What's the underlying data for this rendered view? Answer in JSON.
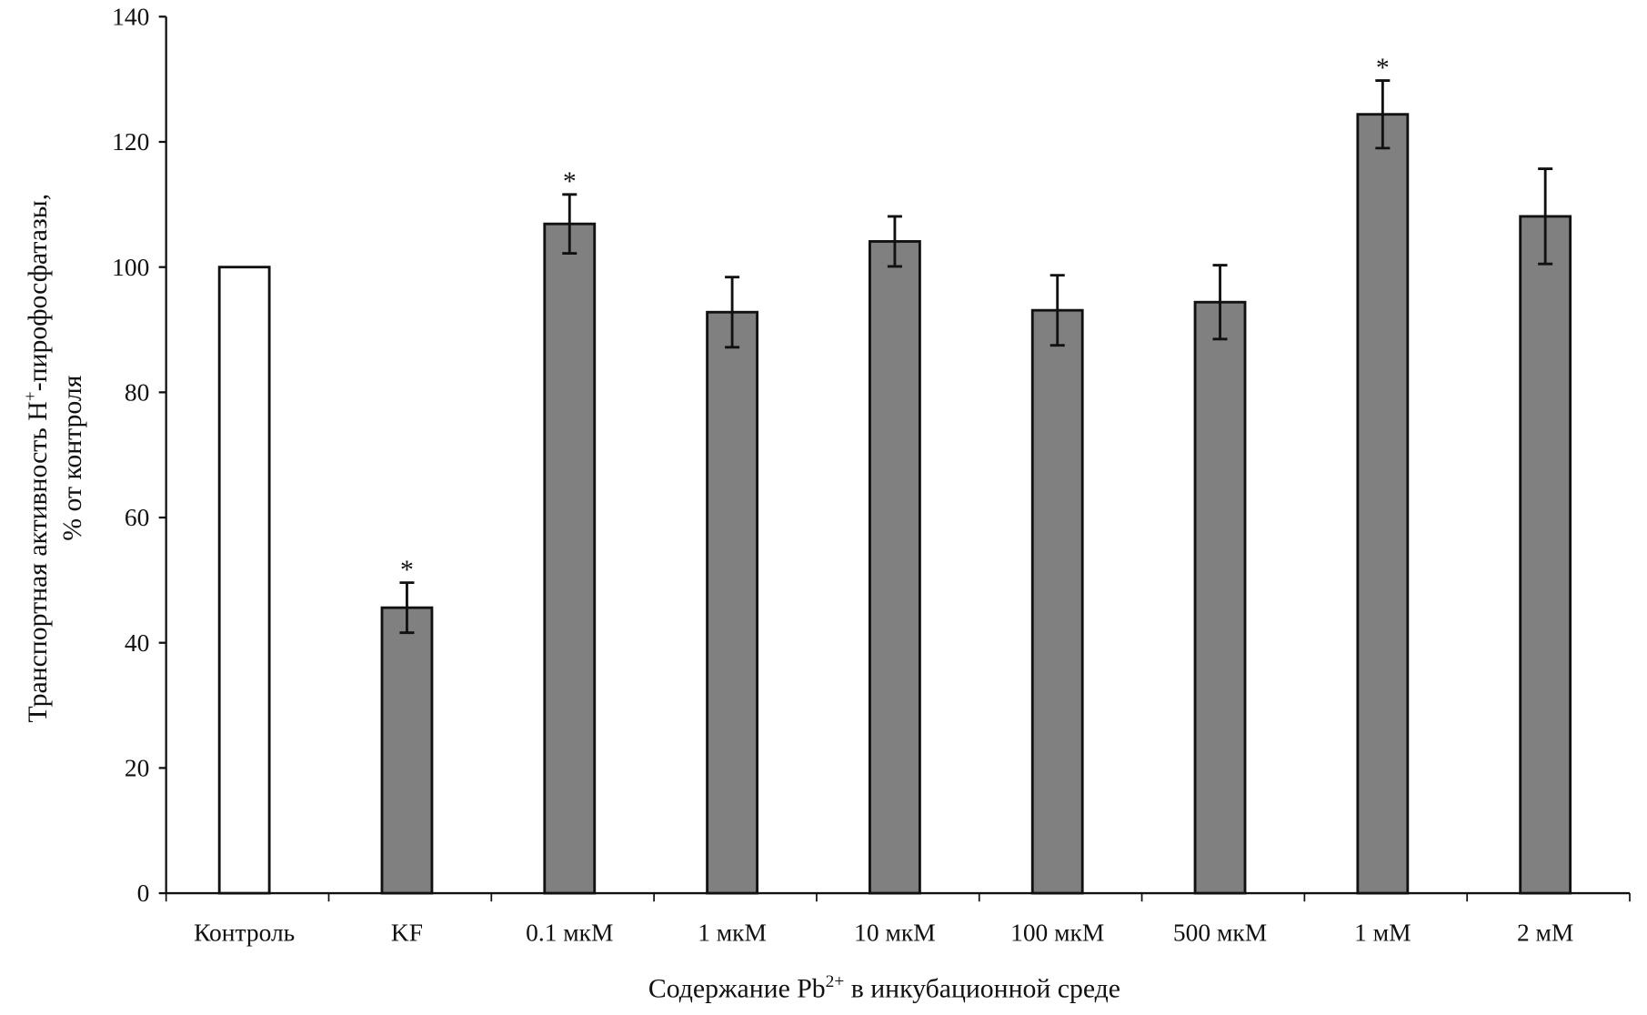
{
  "chart_data": {
    "type": "bar",
    "title": "",
    "xlabel": "Содержание Pb²⁺ в инкубационной среде",
    "xlabel_parts": {
      "main": "Содержание Pb",
      "sup": "2+",
      "rest": " в инкубационной среде"
    },
    "ylabel_line1": "Транспортная активность H⁺-пирофосфатазы,",
    "ylabel_line1_parts": {
      "main": "Транспортная активность H",
      "sup": "+",
      "rest": "-пирофосфатазы,"
    },
    "ylabel_line2": "% от контроля",
    "ylim": [
      0,
      140
    ],
    "yticks": [
      0,
      20,
      40,
      60,
      80,
      100,
      120,
      140
    ],
    "grid": false,
    "categories": [
      "Контроль",
      "KF",
      "0.1 мкМ",
      "1 мкМ",
      "10 мкМ",
      "100 мкМ",
      "500 мкМ",
      "1 мМ",
      "2 мМ"
    ],
    "values": [
      100,
      45.6,
      106.9,
      92.8,
      104.1,
      93.1,
      94.4,
      124.4,
      108.1
    ],
    "errors": [
      0,
      4.0,
      4.7,
      5.6,
      4.0,
      5.6,
      5.9,
      5.4,
      7.6
    ],
    "significant": [
      false,
      true,
      true,
      false,
      false,
      false,
      false,
      true,
      false
    ],
    "significance_marker": "*",
    "colors": {
      "control": "#ffffff",
      "treatment": "#808080",
      "outline": "#111111"
    }
  }
}
